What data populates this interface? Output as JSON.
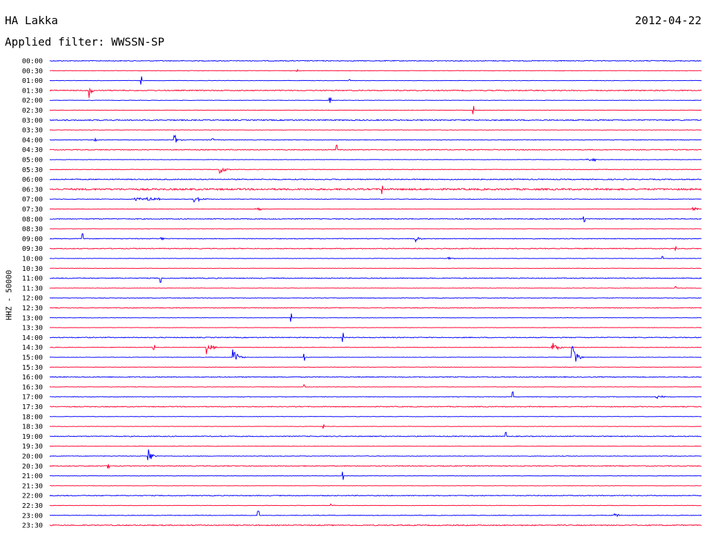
{
  "header": {
    "station": "HA Lakka",
    "filter": "Applied filter: WWSSN-SP",
    "date": "2012-04-22"
  },
  "colors": {
    "trace_a": "#0000ff",
    "trace_b": "#ff0030"
  },
  "chart_data": {
    "type": "line",
    "title": "HA Lakka",
    "ylabel": "HHZ - 50000",
    "row_labels": [
      "00:00",
      "00:30",
      "01:00",
      "01:30",
      "02:00",
      "02:30",
      "03:00",
      "03:30",
      "04:00",
      "04:30",
      "05:00",
      "05:30",
      "06:00",
      "06:30",
      "07:00",
      "07:30",
      "08:00",
      "08:30",
      "09:00",
      "09:30",
      "10:00",
      "10:30",
      "11:00",
      "11:30",
      "12:00",
      "12:30",
      "13:00",
      "13:30",
      "14:00",
      "14:30",
      "15:00",
      "15:30",
      "16:00",
      "16:30",
      "17:00",
      "17:30",
      "18:00",
      "18:30",
      "19:00",
      "19:30",
      "20:00",
      "20:30",
      "21:00",
      "21:30",
      "22:00",
      "22:30",
      "23:00",
      "23:30"
    ],
    "row_minutes": 30,
    "row_noise": [
      0.6,
      0.3,
      0.3,
      0.7,
      0.3,
      0.3,
      0.8,
      0.3,
      0.4,
      0.6,
      0.3,
      0.4,
      0.7,
      1.2,
      0.4,
      0.3,
      0.6,
      0.3,
      0.5,
      0.6,
      0.3,
      0.3,
      0.6,
      0.3,
      0.4,
      0.5,
      0.3,
      0.3,
      0.6,
      0.4,
      0.3,
      0.3,
      0.6,
      0.3,
      0.4,
      0.6,
      0.3,
      0.3,
      0.6,
      0.3,
      0.4,
      0.6,
      0.3,
      0.3,
      0.6,
      0.3,
      0.4,
      0.7
    ],
    "events": [
      {
        "row": 1,
        "x": 0.38,
        "amp": 1.5,
        "dur": 0.005,
        "kind": "spike"
      },
      {
        "row": 2,
        "x": 0.14,
        "amp": 6,
        "dur": 0.005,
        "kind": "spike"
      },
      {
        "row": 2,
        "x": 0.46,
        "amp": 1.5,
        "dur": 0.005,
        "kind": "spike"
      },
      {
        "row": 3,
        "x": 0.06,
        "amp": 14,
        "dur": 0.01,
        "kind": "quake"
      },
      {
        "row": 4,
        "x": 0.43,
        "amp": 4,
        "dur": 0.005,
        "kind": "spike"
      },
      {
        "row": 5,
        "x": 0.65,
        "amp": 6,
        "dur": 0.005,
        "kind": "spike"
      },
      {
        "row": 8,
        "x": 0.07,
        "amp": 1.5,
        "dur": 0.005,
        "kind": "spike"
      },
      {
        "row": 8,
        "x": 0.19,
        "amp": 11,
        "dur": 0.015,
        "kind": "quake"
      },
      {
        "row": 8,
        "x": 0.25,
        "amp": 1.5,
        "dur": 0.01,
        "kind": "spike"
      },
      {
        "row": 9,
        "x": 0.44,
        "amp": 7,
        "dur": 0.005,
        "kind": "spike"
      },
      {
        "row": 10,
        "x": 0.83,
        "amp": 2,
        "dur": 0.02,
        "kind": "burst"
      },
      {
        "row": 11,
        "x": 0.26,
        "amp": 9,
        "dur": 0.02,
        "kind": "quake"
      },
      {
        "row": 13,
        "x": 0.51,
        "amp": 6,
        "dur": 0.005,
        "kind": "spike"
      },
      {
        "row": 14,
        "x": 0.15,
        "amp": 2,
        "dur": 0.04,
        "kind": "burst"
      },
      {
        "row": 14,
        "x": 0.22,
        "amp": 7,
        "dur": 0.025,
        "kind": "quake"
      },
      {
        "row": 15,
        "x": 0.32,
        "amp": 2,
        "dur": 0.01,
        "kind": "burst"
      },
      {
        "row": 15,
        "x": 0.99,
        "amp": 2,
        "dur": 0.01,
        "kind": "burst"
      },
      {
        "row": 16,
        "x": 0.82,
        "amp": 4,
        "dur": 0.005,
        "kind": "spike"
      },
      {
        "row": 18,
        "x": 0.05,
        "amp": 7,
        "dur": 0.005,
        "kind": "spike"
      },
      {
        "row": 18,
        "x": 0.17,
        "amp": 5,
        "dur": 0.01,
        "kind": "quake"
      },
      {
        "row": 18,
        "x": 0.56,
        "amp": 6,
        "dur": 0.015,
        "kind": "quake"
      },
      {
        "row": 19,
        "x": 0.96,
        "amp": 2,
        "dur": 0.005,
        "kind": "spike"
      },
      {
        "row": 20,
        "x": 0.61,
        "amp": 3,
        "dur": 0.015,
        "kind": "quake"
      },
      {
        "row": 20,
        "x": 0.94,
        "amp": 3,
        "dur": 0.005,
        "kind": "spike"
      },
      {
        "row": 22,
        "x": 0.17,
        "amp": 6,
        "dur": 0.005,
        "kind": "spike"
      },
      {
        "row": 23,
        "x": 0.96,
        "amp": 2,
        "dur": 0.005,
        "kind": "spike"
      },
      {
        "row": 26,
        "x": 0.37,
        "amp": 6,
        "dur": 0.005,
        "kind": "spike"
      },
      {
        "row": 28,
        "x": 0.45,
        "amp": 7,
        "dur": 0.005,
        "kind": "spike"
      },
      {
        "row": 29,
        "x": 0.16,
        "amp": 3,
        "dur": 0.005,
        "kind": "spike"
      },
      {
        "row": 29,
        "x": 0.24,
        "amp": 11,
        "dur": 0.02,
        "kind": "quake"
      },
      {
        "row": 29,
        "x": 0.77,
        "amp": 10,
        "dur": 0.02,
        "kind": "quake"
      },
      {
        "row": 30,
        "x": 0.28,
        "amp": 14,
        "dur": 0.02,
        "kind": "quake"
      },
      {
        "row": 30,
        "x": 0.39,
        "amp": 5,
        "dur": 0.005,
        "kind": "spike"
      },
      {
        "row": 30,
        "x": 0.8,
        "amp": 23,
        "dur": 0.02,
        "kind": "quake"
      },
      {
        "row": 33,
        "x": 0.39,
        "amp": 3,
        "dur": 0.005,
        "kind": "spike"
      },
      {
        "row": 34,
        "x": 0.71,
        "amp": 7,
        "dur": 0.005,
        "kind": "spike"
      },
      {
        "row": 34,
        "x": 0.93,
        "amp": 4,
        "dur": 0.02,
        "kind": "quake"
      },
      {
        "row": 37,
        "x": 0.42,
        "amp": 3,
        "dur": 0.005,
        "kind": "spike"
      },
      {
        "row": 38,
        "x": 0.7,
        "amp": 6,
        "dur": 0.005,
        "kind": "spike"
      },
      {
        "row": 40,
        "x": 0.15,
        "amp": 17,
        "dur": 0.015,
        "kind": "quake"
      },
      {
        "row": 41,
        "x": 0.09,
        "amp": 3,
        "dur": 0.005,
        "kind": "spike"
      },
      {
        "row": 42,
        "x": 0.45,
        "amp": 6,
        "dur": 0.005,
        "kind": "spike"
      },
      {
        "row": 45,
        "x": 0.43,
        "amp": 4,
        "dur": 0.01,
        "kind": "quake"
      },
      {
        "row": 46,
        "x": 0.32,
        "amp": 6,
        "dur": 0.005,
        "kind": "spike"
      },
      {
        "row": 46,
        "x": 0.87,
        "amp": 2,
        "dur": 0.01,
        "kind": "burst"
      }
    ],
    "grid": false,
    "legend": "none"
  }
}
